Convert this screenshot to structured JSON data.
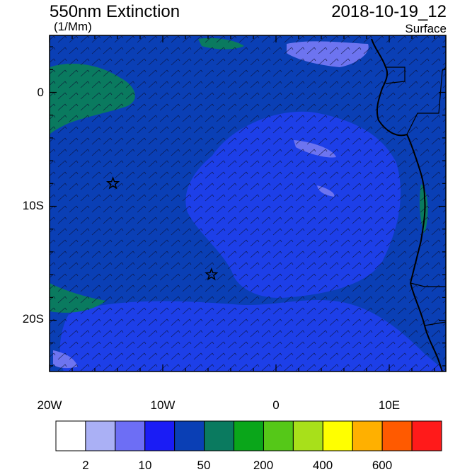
{
  "header": {
    "title": "550nm Extinction",
    "units": "(1/Mm)",
    "datetime": "2018-10-19_12",
    "level": "Surface"
  },
  "map": {
    "lon_range": [
      -20,
      15
    ],
    "lat_range": [
      -24.5,
      5
    ],
    "x_tick_labels": [
      "20W",
      "10W",
      "0",
      "10E"
    ],
    "y_tick_labels": [
      "0",
      "10S",
      "20S"
    ],
    "markers": [
      {
        "type": "star",
        "lon": -14.4,
        "lat": -8.0
      },
      {
        "type": "star",
        "lon": -5.7,
        "lat": -16.0
      }
    ],
    "field_colors": {
      "far_ocean": "#0a3fb5",
      "plume": "#1d3fe8",
      "green_region": "#0a7a5f",
      "light_patch": "#6d74f0"
    }
  },
  "colorbar": {
    "colors": [
      "#ffffff",
      "#aab0f5",
      "#6d6ef5",
      "#1a1cf5",
      "#0a3fb5",
      "#0a7a5f",
      "#0aa61a",
      "#55c818",
      "#a8e01a",
      "#ffff00",
      "#ffb000",
      "#ff5a00",
      "#ff1a1a"
    ],
    "labels": [
      "2",
      "10",
      "50",
      "200",
      "400",
      "600"
    ]
  }
}
